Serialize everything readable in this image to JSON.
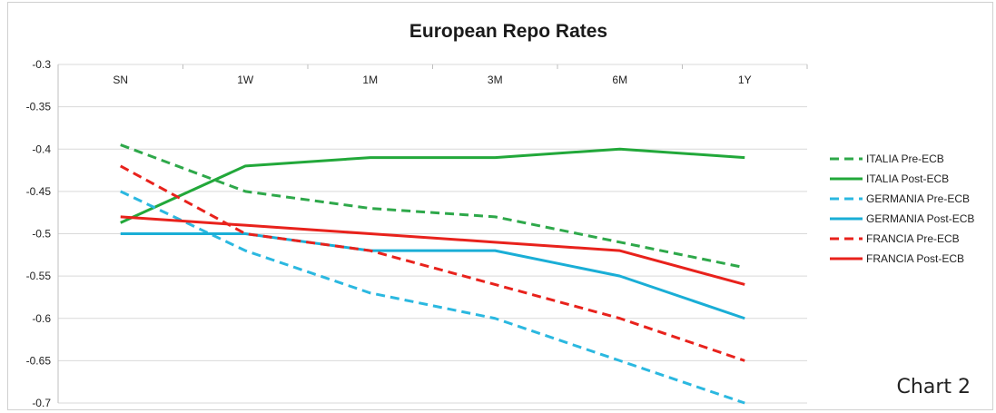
{
  "chart_data": {
    "type": "line",
    "title": "European Repo Rates",
    "caption": "Chart 2",
    "xlabel": "",
    "ylabel": "",
    "categories": [
      "SN",
      "1W",
      "1M",
      "3M",
      "6M",
      "1Y"
    ],
    "ylim": [
      -0.7,
      -0.3
    ],
    "ytick_labels": [
      "-0.3",
      "-0.35",
      "-0.4",
      "-0.45",
      "-0.5",
      "-0.55",
      "-0.6",
      "-0.65",
      "-0.7"
    ],
    "ytick_values": [
      -0.3,
      -0.35,
      -0.4,
      -0.45,
      -0.5,
      -0.55,
      -0.6,
      -0.65,
      -0.7
    ],
    "grid": true,
    "legend_position": "right",
    "series": [
      {
        "name": "ITALIA Pre-ECB",
        "values": [
          -0.395,
          -0.45,
          -0.47,
          -0.48,
          -0.51,
          -0.54
        ],
        "color": "#2ea84a",
        "style": "dashed"
      },
      {
        "name": "ITALIA Post-ECB",
        "values": [
          -0.487,
          -0.42,
          -0.41,
          -0.41,
          -0.4,
          -0.41
        ],
        "color": "#22a83a",
        "style": "solid"
      },
      {
        "name": "GERMANIA Pre-ECB",
        "values": [
          -0.45,
          -0.52,
          -0.57,
          -0.6,
          -0.65,
          -0.7
        ],
        "color": "#2bb8e0",
        "style": "dashed"
      },
      {
        "name": "GERMANIA Post-ECB",
        "values": [
          -0.5,
          -0.5,
          -0.52,
          -0.52,
          -0.55,
          -0.6
        ],
        "color": "#1aaed6",
        "style": "solid"
      },
      {
        "name": "FRANCIA Pre-ECB",
        "values": [
          -0.42,
          -0.5,
          -0.52,
          -0.56,
          -0.6,
          -0.65
        ],
        "color": "#e8221c",
        "style": "dashed"
      },
      {
        "name": "FRANCIA Post-ECB",
        "values": [
          -0.48,
          -0.49,
          -0.5,
          -0.51,
          -0.52,
          -0.56
        ],
        "color": "#e8221c",
        "style": "solid"
      }
    ]
  }
}
